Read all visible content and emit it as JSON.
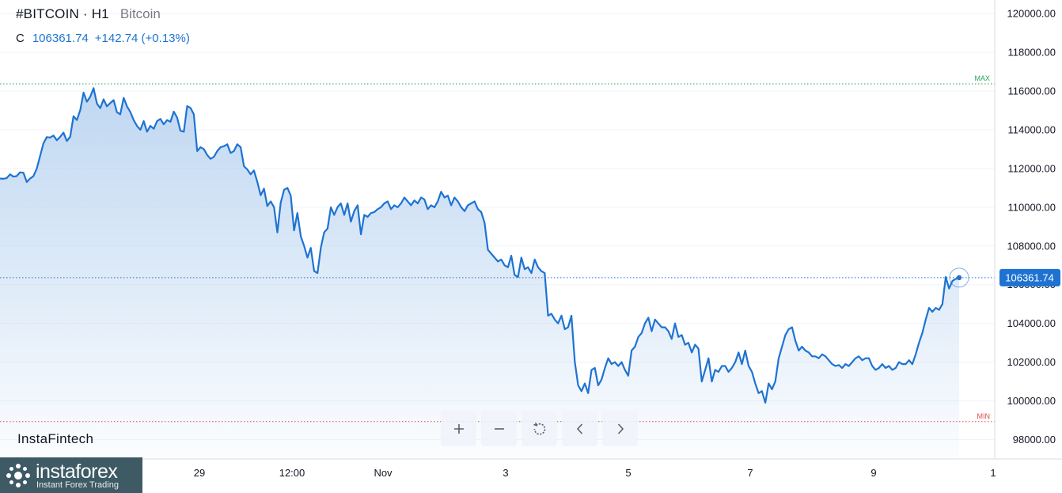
{
  "header": {
    "symbol": "#BITCOIN · H1",
    "description": "Bitcoin",
    "close_label": "C",
    "close_value": "106361.74",
    "change": "+142.74 (+0.13%)"
  },
  "brand": {
    "watermark": "InstaFintech",
    "logo_name": "instaforex",
    "logo_tagline": "Instant Forex Trading"
  },
  "markers": {
    "max_label": "MAX",
    "min_label": "MIN",
    "last_price_label": "106361.74"
  },
  "toolbar": {
    "buttons": [
      "zoom-in",
      "zoom-out",
      "reset",
      "scroll-left",
      "scroll-right"
    ]
  },
  "colors": {
    "line": "#1e73d2",
    "fill": "#bcd5f1",
    "max": "#26a65b",
    "min": "#e5484d",
    "badge": "#1e73d2"
  },
  "chart_data": {
    "type": "area",
    "title": "#BITCOIN · H1",
    "xlabel": "",
    "ylabel": "",
    "ylim": [
      97000,
      120700
    ],
    "y_ticks": [
      98000,
      100000,
      102000,
      104000,
      106000,
      108000,
      110000,
      112000,
      114000,
      116000,
      118000,
      120000
    ],
    "y_tick_labels": [
      "98000.00",
      "100000.00",
      "102000.00",
      "104000.00",
      "106000.00",
      "108000.00",
      "110000.00",
      "112000.00",
      "114000.00",
      "116000.00",
      "118000.00",
      "120000.00"
    ],
    "x_tick_labels": [
      "29",
      "12:00",
      "Nov",
      "3",
      "5",
      "7",
      "9",
      "1"
    ],
    "max_value": 116370,
    "min_value": 98930,
    "last_value": 106361.74,
    "values": [
      111480,
      111470,
      111500,
      111700,
      111580,
      111610,
      111800,
      111780,
      111300,
      111480,
      111600,
      112000,
      112650,
      113300,
      113620,
      113600,
      113700,
      113460,
      113630,
      113850,
      113420,
      113640,
      114700,
      114500,
      115010,
      115920,
      115450,
      115700,
      116150,
      115350,
      115120,
      115570,
      115210,
      115380,
      115530,
      114900,
      114800,
      115650,
      115210,
      114920,
      114500,
      114200,
      114000,
      114450,
      113900,
      114200,
      114050,
      114450,
      114560,
      114280,
      114500,
      114410,
      114940,
      114630,
      113950,
      113900,
      115220,
      115130,
      114800,
      112900,
      113100,
      113000,
      112700,
      112500,
      112600,
      112900,
      113100,
      113150,
      113250,
      112800,
      112900,
      113250,
      113100,
      112120,
      111950,
      111700,
      111900,
      111300,
      110620,
      110960,
      110060,
      110300,
      110000,
      108700,
      110230,
      110900,
      111000,
      110600,
      108800,
      109700,
      108500,
      108000,
      107400,
      107900,
      106700,
      106600,
      107900,
      108700,
      108900,
      110000,
      109600,
      110000,
      110200,
      109600,
      110200,
      109250,
      109800,
      110100,
      108600,
      109600,
      109500,
      109700,
      109750,
      109900,
      110000,
      110200,
      110300,
      109900,
      110100,
      110000,
      110200,
      110500,
      110300,
      110100,
      110350,
      110200,
      110500,
      110400,
      109900,
      110100,
      110000,
      110300,
      110800,
      110500,
      110600,
      110100,
      110500,
      110300,
      110000,
      109800,
      110100,
      110200,
      110300,
      109900,
      109750,
      109200,
      107800,
      107600,
      107400,
      107200,
      107300,
      107000,
      106900,
      107500,
      106500,
      106400,
      107400,
      106800,
      106900,
      106600,
      107300,
      106900,
      106700,
      106600,
      104400,
      104500,
      104200,
      104000,
      104400,
      103700,
      103800,
      104400,
      102000,
      100800,
      100500,
      100900,
      100400,
      101600,
      101700,
      100800,
      101100,
      101700,
      102200,
      101900,
      102000,
      101800,
      102000,
      101600,
      101300,
      102600,
      102800,
      103300,
      103500,
      104000,
      104300,
      103600,
      104200,
      104000,
      103800,
      103800,
      103600,
      103200,
      104000,
      103300,
      103400,
      102900,
      103000,
      102500,
      102900,
      102700,
      101000,
      101600,
      102200,
      101000,
      101600,
      101500,
      101800,
      101800,
      101500,
      101700,
      102000,
      102500,
      101900,
      102600,
      101800,
      101500,
      100900,
      100400,
      100500,
      99900,
      100900,
      100600,
      101000,
      102200,
      102800,
      103400,
      103700,
      103800,
      103100,
      102600,
      102800,
      102600,
      102500,
      102300,
      102300,
      102200,
      102400,
      102300,
      102100,
      101900,
      101800,
      101850,
      101700,
      101900,
      101800,
      102000,
      102200,
      102300,
      102100,
      102200,
      102200,
      101800,
      101600,
      101700,
      101900,
      101700,
      101800,
      101600,
      101700,
      102000,
      101900,
      101900,
      102100,
      101900,
      102400,
      103000,
      103500,
      104200,
      104800,
      104600,
      104800,
      104700,
      105000,
      106400,
      105800,
      106200,
      106300,
      106361.74
    ]
  }
}
